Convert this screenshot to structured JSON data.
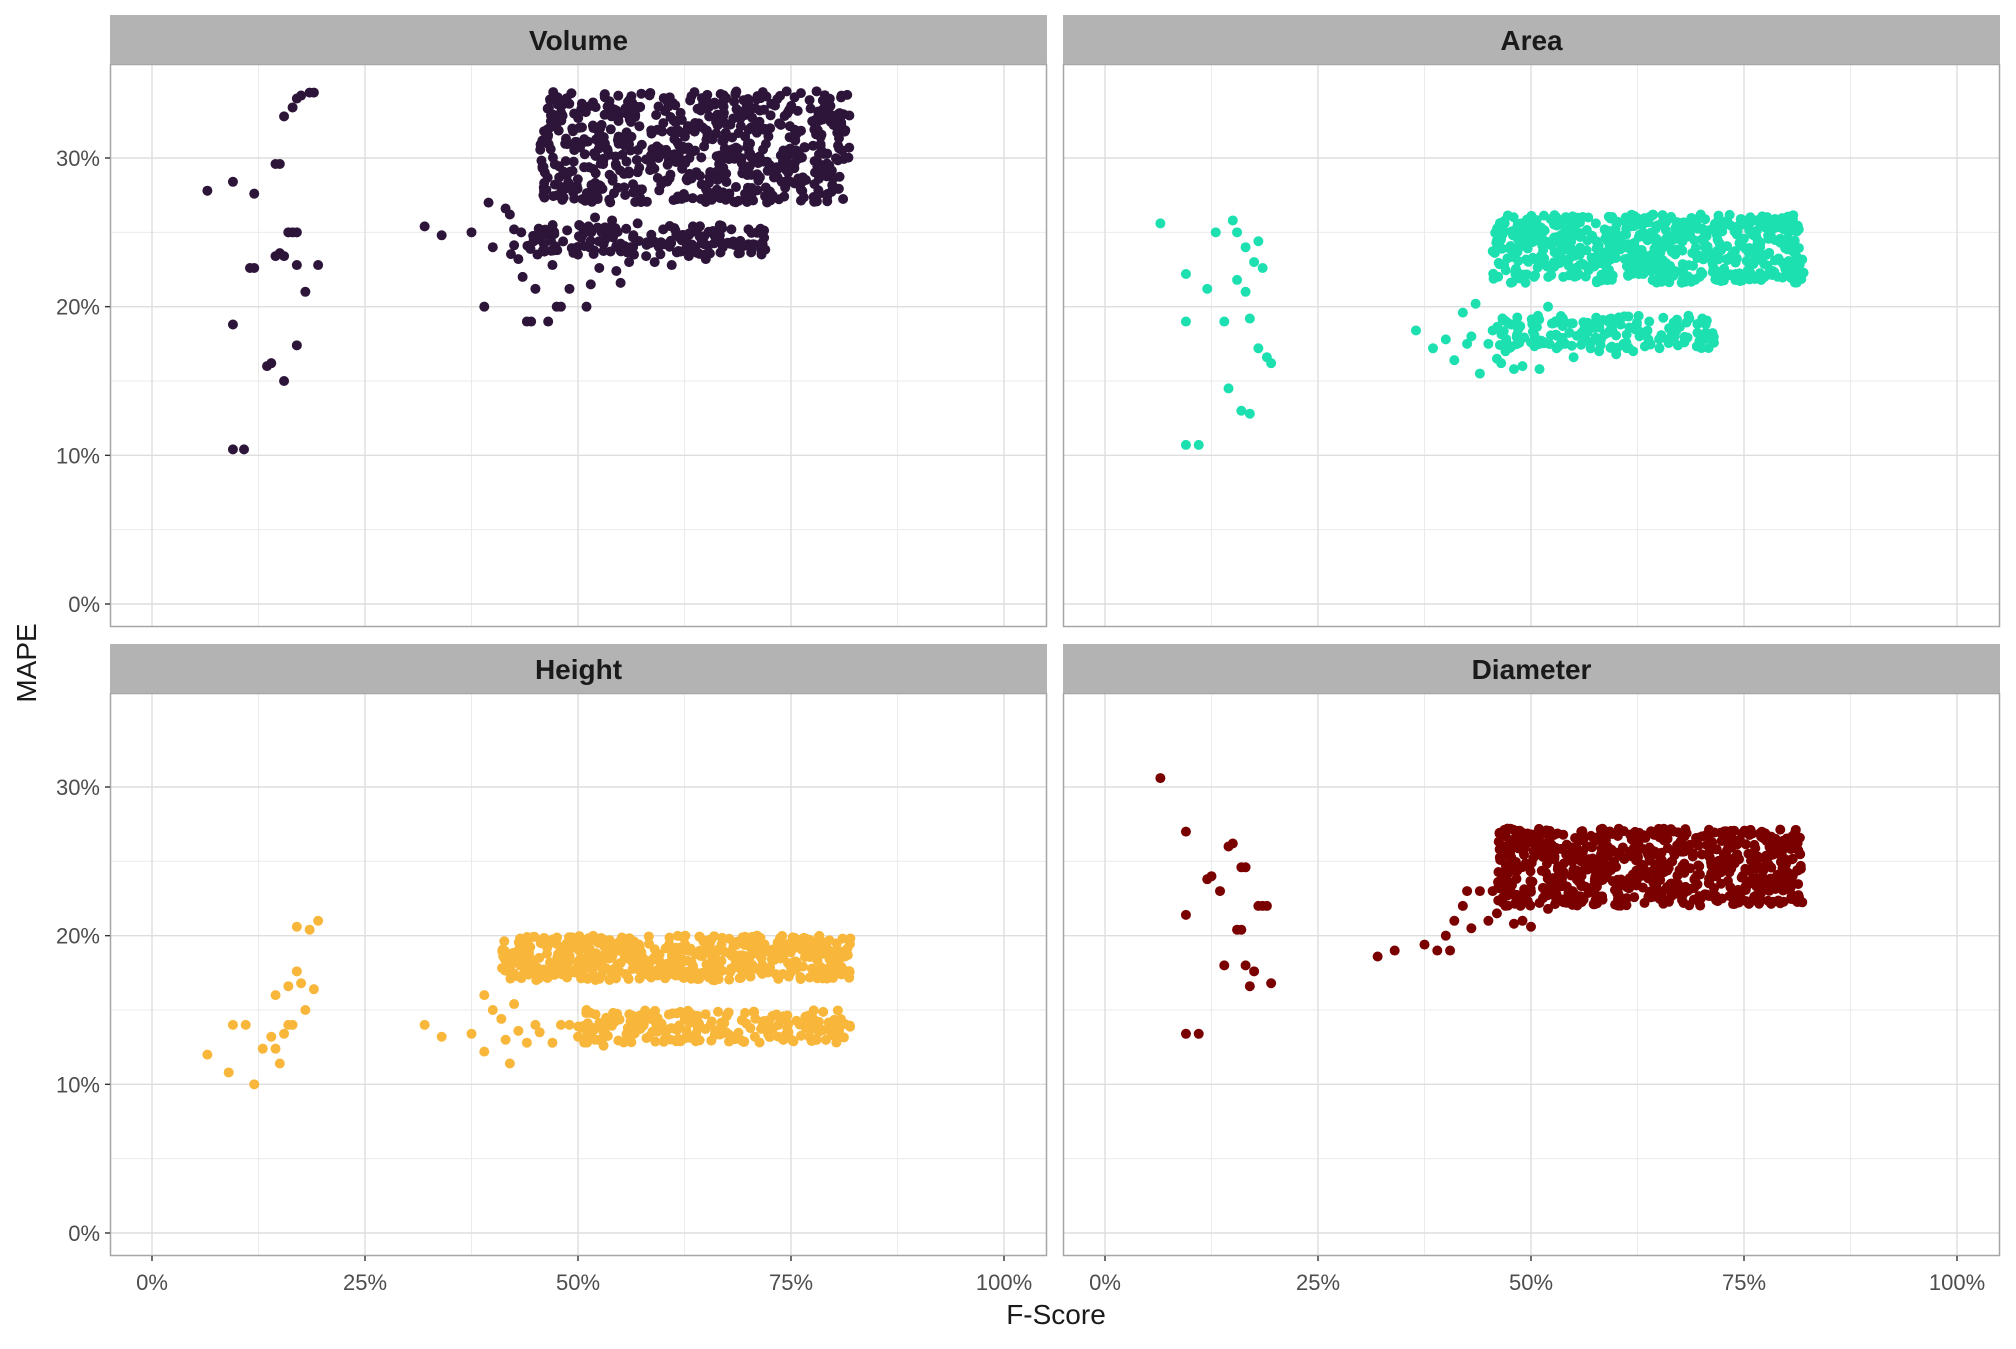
{
  "chart_data": {
    "type": "scatter",
    "xlabel": "F-Score",
    "ylabel": "MAPE",
    "xlim": [
      0,
      1
    ],
    "ylim": [
      0,
      0.35
    ],
    "x_ticks": [
      "0%",
      "25%",
      "50%",
      "75%",
      "100%"
    ],
    "y_ticks": [
      "0%",
      "10%",
      "20%",
      "30%"
    ],
    "x_tick_values": [
      0,
      0.25,
      0.5,
      0.75,
      1.0
    ],
    "y_tick_values": [
      0,
      0.1,
      0.2,
      0.3
    ],
    "grid": true,
    "legend": "none",
    "facets": [
      {
        "name": "Volume",
        "color": "#2d1439",
        "points": [
          [
            0.065,
            0.278
          ],
          [
            0.095,
            0.284
          ],
          [
            0.12,
            0.276
          ],
          [
            0.095,
            0.188
          ],
          [
            0.115,
            0.226
          ],
          [
            0.12,
            0.226
          ],
          [
            0.095,
            0.104
          ],
          [
            0.108,
            0.104
          ],
          [
            0.135,
            0.16
          ],
          [
            0.14,
            0.162
          ],
          [
            0.155,
            0.15
          ],
          [
            0.17,
            0.174
          ],
          [
            0.145,
            0.234
          ],
          [
            0.15,
            0.236
          ],
          [
            0.155,
            0.234
          ],
          [
            0.16,
            0.25
          ],
          [
            0.165,
            0.25
          ],
          [
            0.17,
            0.25
          ],
          [
            0.17,
            0.228
          ],
          [
            0.18,
            0.21
          ],
          [
            0.195,
            0.228
          ],
          [
            0.145,
            0.296
          ],
          [
            0.15,
            0.296
          ],
          [
            0.155,
            0.328
          ],
          [
            0.165,
            0.334
          ],
          [
            0.17,
            0.34
          ],
          [
            0.175,
            0.342
          ],
          [
            0.185,
            0.344
          ],
          [
            0.19,
            0.344
          ],
          [
            0.32,
            0.254
          ],
          [
            0.34,
            0.248
          ],
          [
            0.375,
            0.25
          ],
          [
            0.39,
            0.2
          ],
          [
            0.395,
            0.27
          ],
          [
            0.4,
            0.24
          ],
          [
            0.415,
            0.266
          ],
          [
            0.42,
            0.262
          ],
          [
            0.425,
            0.252
          ],
          [
            0.43,
            0.232
          ],
          [
            0.435,
            0.22
          ],
          [
            0.44,
            0.19
          ],
          [
            0.445,
            0.19
          ],
          [
            0.45,
            0.212
          ],
          [
            0.46,
            0.242
          ],
          [
            0.465,
            0.19
          ],
          [
            0.47,
            0.228
          ],
          [
            0.475,
            0.2
          ],
          [
            0.48,
            0.2
          ],
          [
            0.49,
            0.212
          ],
          [
            0.5,
            0.235
          ],
          [
            0.51,
            0.2
          ],
          [
            0.515,
            0.215
          ],
          [
            0.52,
            0.26
          ],
          [
            0.525,
            0.226
          ],
          [
            0.53,
            0.242
          ],
          [
            0.54,
            0.258
          ],
          [
            0.545,
            0.224
          ],
          [
            0.55,
            0.216
          ],
          [
            0.56,
            0.23
          ],
          [
            0.565,
            0.248
          ],
          [
            0.57,
            0.256
          ],
          [
            0.58,
            0.234
          ],
          [
            0.59,
            0.23
          ],
          [
            0.6,
            0.252
          ],
          [
            0.61,
            0.228
          ],
          [
            0.62,
            0.246
          ],
          [
            0.63,
            0.234
          ],
          [
            0.64,
            0.252
          ],
          [
            0.65,
            0.232
          ],
          [
            0.66,
            0.248
          ],
          [
            0.67,
            0.24
          ],
          [
            0.68,
            0.252
          ],
          [
            0.69,
            0.236
          ],
          [
            0.7,
            0.242
          ],
          [
            0.71,
            0.25
          ],
          [
            0.715,
            0.238
          ]
        ],
        "clusters": [
          {
            "x_range": [
              0.455,
              0.82
            ],
            "y_range": [
              0.27,
              0.345
            ],
            "count": 650
          },
          {
            "x_range": [
              0.42,
              0.72
            ],
            "y_range": [
              0.235,
              0.255
            ],
            "count": 160
          }
        ]
      },
      {
        "name": "Area",
        "color": "#1de0b0",
        "points": [
          [
            0.065,
            0.256
          ],
          [
            0.095,
            0.222
          ],
          [
            0.095,
            0.19
          ],
          [
            0.095,
            0.107
          ],
          [
            0.11,
            0.107
          ],
          [
            0.12,
            0.212
          ],
          [
            0.13,
            0.25
          ],
          [
            0.14,
            0.19
          ],
          [
            0.145,
            0.145
          ],
          [
            0.15,
            0.258
          ],
          [
            0.155,
            0.25
          ],
          [
            0.16,
            0.13
          ],
          [
            0.165,
            0.24
          ],
          [
            0.165,
            0.21
          ],
          [
            0.17,
            0.128
          ],
          [
            0.17,
            0.192
          ],
          [
            0.175,
            0.23
          ],
          [
            0.18,
            0.244
          ],
          [
            0.185,
            0.226
          ],
          [
            0.19,
            0.166
          ],
          [
            0.195,
            0.162
          ],
          [
            0.18,
            0.172
          ],
          [
            0.155,
            0.218
          ],
          [
            0.365,
            0.184
          ],
          [
            0.385,
            0.172
          ],
          [
            0.4,
            0.178
          ],
          [
            0.41,
            0.164
          ],
          [
            0.42,
            0.196
          ],
          [
            0.425,
            0.175
          ],
          [
            0.43,
            0.18
          ],
          [
            0.435,
            0.202
          ],
          [
            0.44,
            0.155
          ],
          [
            0.45,
            0.175
          ],
          [
            0.455,
            0.184
          ],
          [
            0.46,
            0.165
          ],
          [
            0.465,
            0.162
          ],
          [
            0.47,
            0.17
          ],
          [
            0.48,
            0.158
          ],
          [
            0.49,
            0.16
          ],
          [
            0.5,
            0.176
          ],
          [
            0.51,
            0.158
          ],
          [
            0.52,
            0.2
          ],
          [
            0.53,
            0.172
          ],
          [
            0.54,
            0.175
          ],
          [
            0.55,
            0.166
          ],
          [
            0.56,
            0.18
          ],
          [
            0.57,
            0.172
          ],
          [
            0.58,
            0.17
          ],
          [
            0.6,
            0.168
          ],
          [
            0.62,
            0.17
          ],
          [
            0.64,
            0.175
          ],
          [
            0.66,
            0.178
          ],
          [
            0.68,
            0.176
          ],
          [
            0.7,
            0.178
          ]
        ],
        "clusters": [
          {
            "x_range": [
              0.455,
              0.82
            ],
            "y_range": [
              0.216,
              0.262
            ],
            "count": 600
          },
          {
            "x_range": [
              0.46,
              0.72
            ],
            "y_range": [
              0.172,
              0.194
            ],
            "count": 150
          }
        ]
      },
      {
        "name": "Height",
        "color": "#f8b73b",
        "points": [
          [
            0.065,
            0.12
          ],
          [
            0.09,
            0.108
          ],
          [
            0.095,
            0.14
          ],
          [
            0.11,
            0.14
          ],
          [
            0.12,
            0.1
          ],
          [
            0.13,
            0.124
          ],
          [
            0.145,
            0.124
          ],
          [
            0.14,
            0.132
          ],
          [
            0.15,
            0.114
          ],
          [
            0.155,
            0.134
          ],
          [
            0.16,
            0.14
          ],
          [
            0.16,
            0.166
          ],
          [
            0.165,
            0.14
          ],
          [
            0.17,
            0.176
          ],
          [
            0.17,
            0.206
          ],
          [
            0.175,
            0.168
          ],
          [
            0.18,
            0.15
          ],
          [
            0.185,
            0.204
          ],
          [
            0.19,
            0.164
          ],
          [
            0.195,
            0.21
          ],
          [
            0.145,
            0.16
          ],
          [
            0.32,
            0.14
          ],
          [
            0.34,
            0.132
          ],
          [
            0.375,
            0.134
          ],
          [
            0.39,
            0.122
          ],
          [
            0.39,
            0.16
          ],
          [
            0.4,
            0.15
          ],
          [
            0.41,
            0.144
          ],
          [
            0.415,
            0.13
          ],
          [
            0.42,
            0.114
          ],
          [
            0.425,
            0.154
          ],
          [
            0.43,
            0.136
          ],
          [
            0.44,
            0.128
          ],
          [
            0.45,
            0.14
          ],
          [
            0.455,
            0.135
          ],
          [
            0.47,
            0.128
          ],
          [
            0.48,
            0.14
          ],
          [
            0.49,
            0.14
          ],
          [
            0.5,
            0.132
          ],
          [
            0.51,
            0.15
          ],
          [
            0.52,
            0.13
          ],
          [
            0.53,
            0.126
          ]
        ],
        "clusters": [
          {
            "x_range": [
              0.41,
              0.82
            ],
            "y_range": [
              0.17,
              0.2
            ],
            "count": 550
          },
          {
            "x_range": [
              0.5,
              0.82
            ],
            "y_range": [
              0.128,
              0.15
            ],
            "count": 220
          }
        ]
      },
      {
        "name": "Diameter",
        "color": "#7a0000",
        "points": [
          [
            0.065,
            0.306
          ],
          [
            0.095,
            0.27
          ],
          [
            0.095,
            0.214
          ],
          [
            0.095,
            0.134
          ],
          [
            0.11,
            0.134
          ],
          [
            0.12,
            0.238
          ],
          [
            0.125,
            0.24
          ],
          [
            0.135,
            0.23
          ],
          [
            0.14,
            0.18
          ],
          [
            0.145,
            0.26
          ],
          [
            0.15,
            0.262
          ],
          [
            0.155,
            0.204
          ],
          [
            0.16,
            0.246
          ],
          [
            0.165,
            0.246
          ],
          [
            0.165,
            0.18
          ],
          [
            0.17,
            0.166
          ],
          [
            0.175,
            0.176
          ],
          [
            0.18,
            0.22
          ],
          [
            0.185,
            0.22
          ],
          [
            0.19,
            0.22
          ],
          [
            0.195,
            0.168
          ],
          [
            0.16,
            0.204
          ],
          [
            0.32,
            0.186
          ],
          [
            0.34,
            0.19
          ],
          [
            0.375,
            0.194
          ],
          [
            0.39,
            0.19
          ],
          [
            0.4,
            0.2
          ],
          [
            0.405,
            0.19
          ],
          [
            0.41,
            0.21
          ],
          [
            0.42,
            0.22
          ],
          [
            0.425,
            0.23
          ],
          [
            0.43,
            0.205
          ],
          [
            0.44,
            0.23
          ],
          [
            0.45,
            0.21
          ],
          [
            0.455,
            0.23
          ],
          [
            0.46,
            0.215
          ],
          [
            0.47,
            0.22
          ],
          [
            0.48,
            0.208
          ],
          [
            0.49,
            0.21
          ],
          [
            0.5,
            0.206
          ],
          [
            0.51,
            0.222
          ],
          [
            0.52,
            0.218
          ],
          [
            0.53,
            0.225
          ]
        ],
        "clusters": [
          {
            "x_range": [
              0.46,
              0.82
            ],
            "y_range": [
              0.22,
              0.272
            ],
            "count": 700
          }
        ]
      }
    ]
  }
}
